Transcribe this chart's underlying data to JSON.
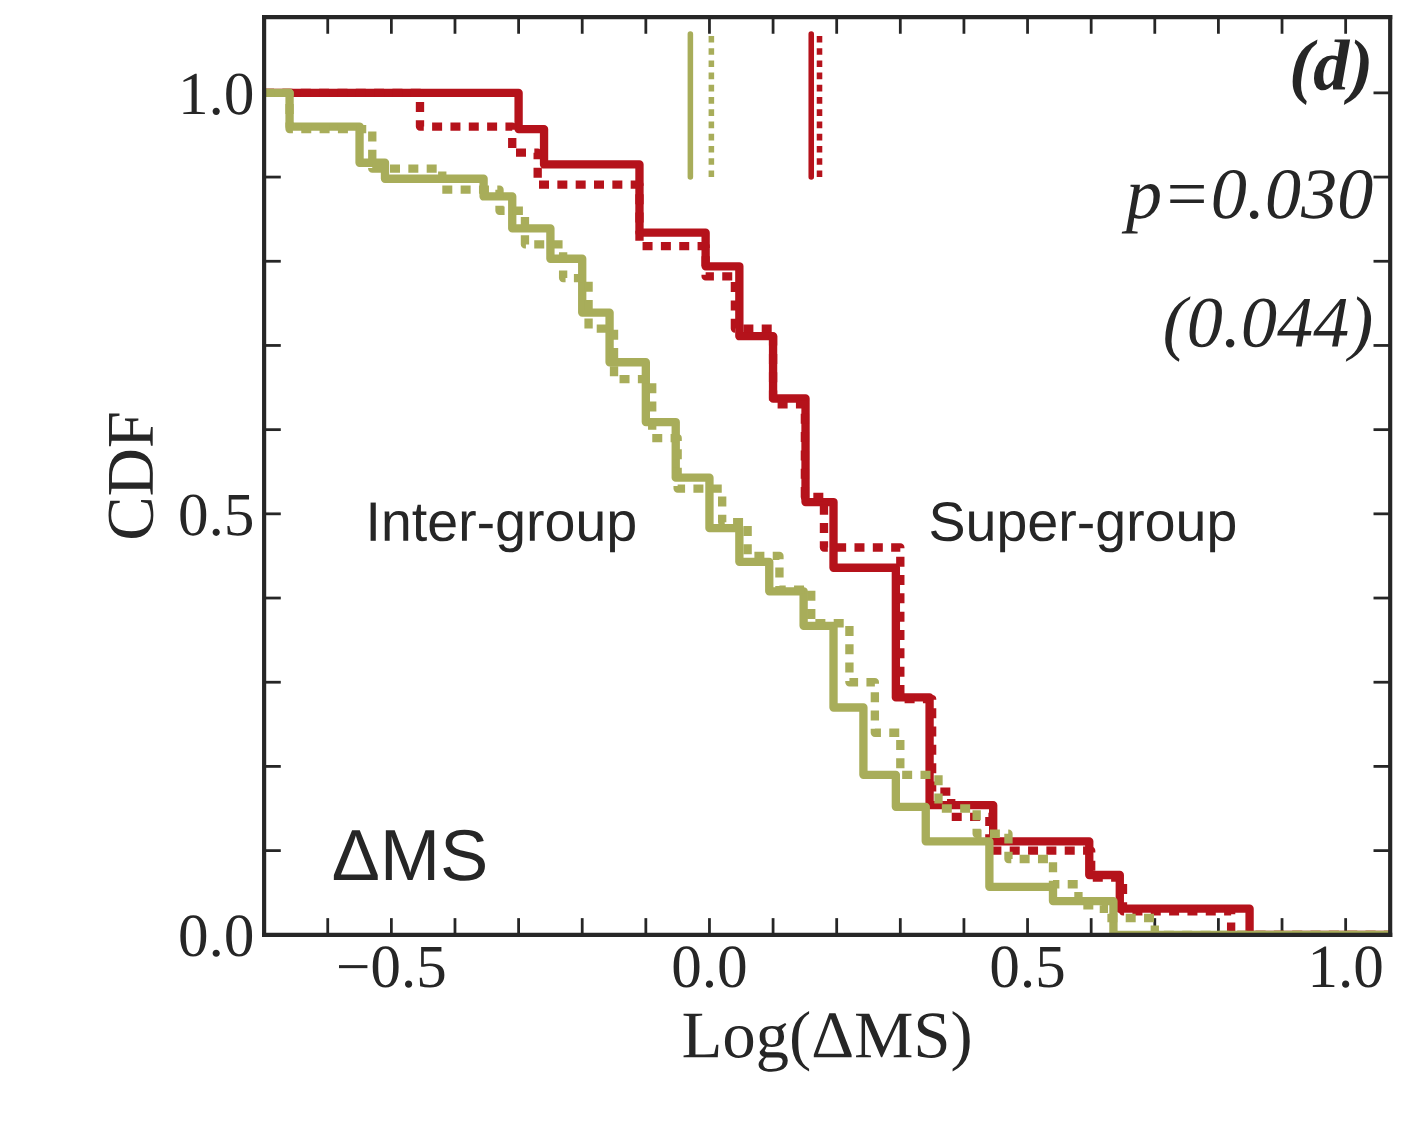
{
  "chart_data": {
    "type": "step",
    "xlabel": "Log(ΔMS)",
    "ylabel": "CDF",
    "annotations": [
      "(d)",
      "p=0.030",
      "(0.044)",
      "Inter-group",
      "Super-group",
      "ΔMS"
    ],
    "xlim": [
      -0.7,
      1.07
    ],
    "ylim": [
      0.0,
      1.09
    ],
    "xticks": [
      {
        "value": -0.6,
        "label": null
      },
      {
        "value": -0.5,
        "label": "−0.5"
      },
      {
        "value": -0.4,
        "label": null
      },
      {
        "value": -0.3,
        "label": null
      },
      {
        "value": -0.2,
        "label": null
      },
      {
        "value": -0.1,
        "label": null
      },
      {
        "value": 0.0,
        "label": "0.0"
      },
      {
        "value": 0.1,
        "label": null
      },
      {
        "value": 0.2,
        "label": null
      },
      {
        "value": 0.3,
        "label": null
      },
      {
        "value": 0.4,
        "label": null
      },
      {
        "value": 0.5,
        "label": "0.5"
      },
      {
        "value": 0.6,
        "label": null
      },
      {
        "value": 0.7,
        "label": null
      },
      {
        "value": 0.8,
        "label": null
      },
      {
        "value": 0.9,
        "label": null
      },
      {
        "value": 1.0,
        "label": "1.0"
      }
    ],
    "yticks": [
      {
        "value": 0.0,
        "label": "0.0"
      },
      {
        "value": 0.1,
        "label": null
      },
      {
        "value": 0.2,
        "label": null
      },
      {
        "value": 0.3,
        "label": null
      },
      {
        "value": 0.4,
        "label": null
      },
      {
        "value": 0.5,
        "label": "0.5"
      },
      {
        "value": 0.6,
        "label": null
      },
      {
        "value": 0.7,
        "label": null
      },
      {
        "value": 0.8,
        "label": null
      },
      {
        "value": 0.9,
        "label": null
      },
      {
        "value": 1.0,
        "label": "1.0"
      }
    ],
    "grid": false,
    "legend": false,
    "series": [
      {
        "color": "#b5121b",
        "line_style": "solid",
        "x": [
          -0.7,
          -0.3,
          -0.26,
          -0.11,
          -0.006,
          0.047,
          0.1,
          0.151,
          0.195,
          0.293,
          0.346,
          0.446,
          0.597,
          0.645,
          0.849,
          1.07
        ],
        "values": [
          1.0,
          0.957,
          0.915,
          0.834,
          0.794,
          0.711,
          0.637,
          0.514,
          0.436,
          0.282,
          0.154,
          0.111,
          0.071,
          0.031,
          0.0,
          0.0
        ]
      },
      {
        "color": "#b5121b",
        "line_style": "dotted",
        "x": [
          -0.7,
          -0.455,
          -0.31,
          -0.27,
          -0.11,
          -0.006,
          0.04,
          0.1,
          0.15,
          0.18,
          0.3,
          0.35,
          0.38,
          0.44,
          0.6,
          0.65,
          0.82,
          1.07
        ],
        "values": [
          1.0,
          0.96,
          0.929,
          0.891,
          0.818,
          0.782,
          0.72,
          0.63,
          0.52,
          0.46,
          0.28,
          0.17,
          0.14,
          0.1,
          0.068,
          0.028,
          0.0,
          0.0
        ]
      },
      {
        "color": "#a8ad5a",
        "line_style": "solid",
        "x": [
          -0.7,
          -0.66,
          -0.55,
          -0.51,
          -0.355,
          -0.31,
          -0.25,
          -0.2,
          -0.157,
          -0.1,
          -0.053,
          0.0,
          0.047,
          0.094,
          0.148,
          0.195,
          0.242,
          0.293,
          0.34,
          0.44,
          0.54,
          0.635,
          1.07
        ],
        "values": [
          1.0,
          0.96,
          0.917,
          0.898,
          0.877,
          0.839,
          0.803,
          0.739,
          0.68,
          0.609,
          0.543,
          0.483,
          0.443,
          0.408,
          0.367,
          0.27,
          0.19,
          0.152,
          0.111,
          0.057,
          0.04,
          0.0,
          0.0
        ]
      },
      {
        "color": "#a8ad5a",
        "line_style": "dotted",
        "x": [
          -0.7,
          -0.66,
          -0.53,
          -0.42,
          -0.33,
          -0.29,
          -0.23,
          -0.19,
          -0.15,
          -0.09,
          -0.05,
          0.02,
          0.06,
          0.11,
          0.16,
          0.22,
          0.26,
          0.3,
          0.36,
          0.42,
          0.47,
          0.54,
          0.58,
          0.62,
          0.7,
          1.07
        ],
        "values": [
          1.0,
          0.957,
          0.91,
          0.885,
          0.86,
          0.82,
          0.78,
          0.72,
          0.66,
          0.59,
          0.53,
          0.49,
          0.45,
          0.41,
          0.37,
          0.3,
          0.24,
          0.19,
          0.15,
          0.12,
          0.09,
          0.06,
          0.035,
          0.02,
          0.0,
          0.0
        ]
      },
      {
        "type": "line",
        "color": "#a8ad5a",
        "line_style": "solid",
        "x": [
          -0.03,
          -0.03
        ],
        "values": [
          0.9,
          1.07
        ]
      },
      {
        "type": "line",
        "color": "#a8ad5a",
        "line_style": "dotted",
        "x": [
          0.003,
          0.003
        ],
        "values": [
          0.9,
          1.07
        ]
      },
      {
        "type": "line",
        "color": "#b5121b",
        "line_style": "solid",
        "x": [
          0.16,
          0.16
        ],
        "values": [
          0.9,
          1.07
        ]
      },
      {
        "type": "line",
        "color": "#b5121b",
        "line_style": "dotted",
        "x": [
          0.173,
          0.173
        ],
        "values": [
          0.9,
          1.07
        ]
      }
    ]
  }
}
